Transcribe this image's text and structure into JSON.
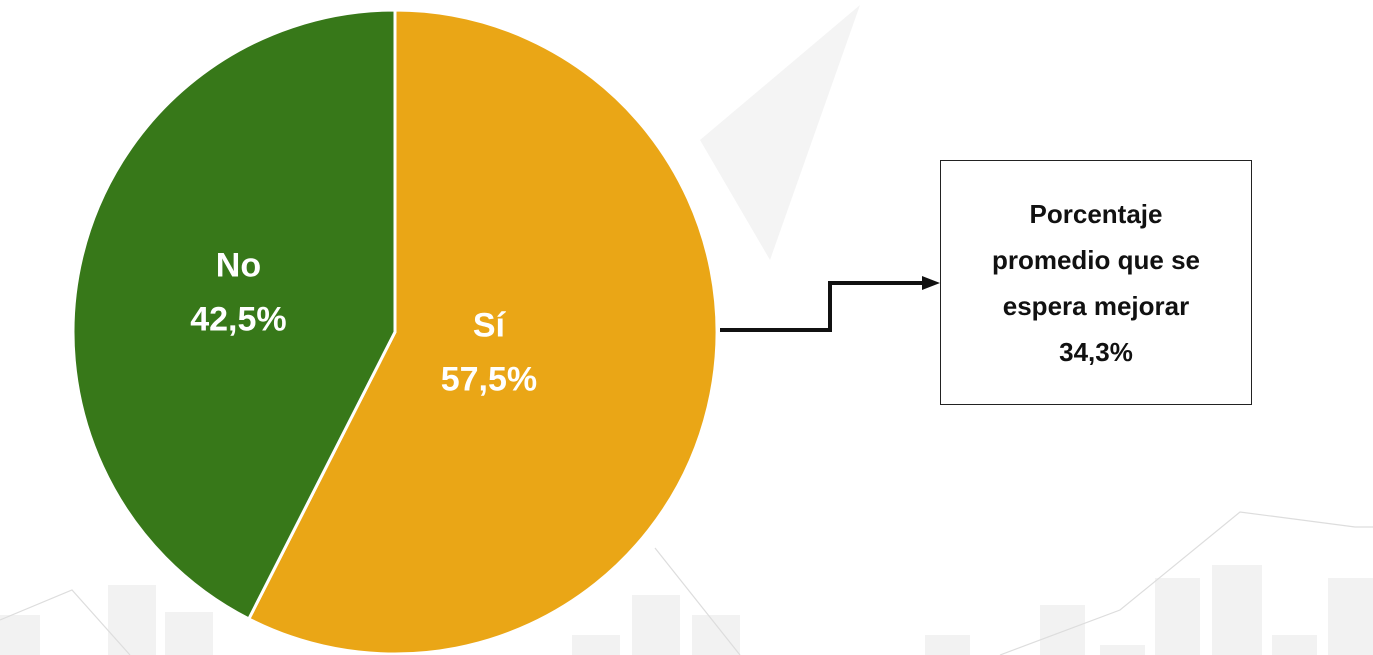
{
  "chart_data": {
    "type": "pie",
    "categories": [
      "Sí",
      "No"
    ],
    "values": [
      57.5,
      42.5
    ],
    "value_labels": [
      "57,5%",
      "42,5%"
    ],
    "colors": [
      "#eaa616",
      "#377819"
    ],
    "annotation": {
      "text": "Porcentaje promedio que se espera mejorar",
      "value": 34.3,
      "label": "34,3%"
    }
  }
}
